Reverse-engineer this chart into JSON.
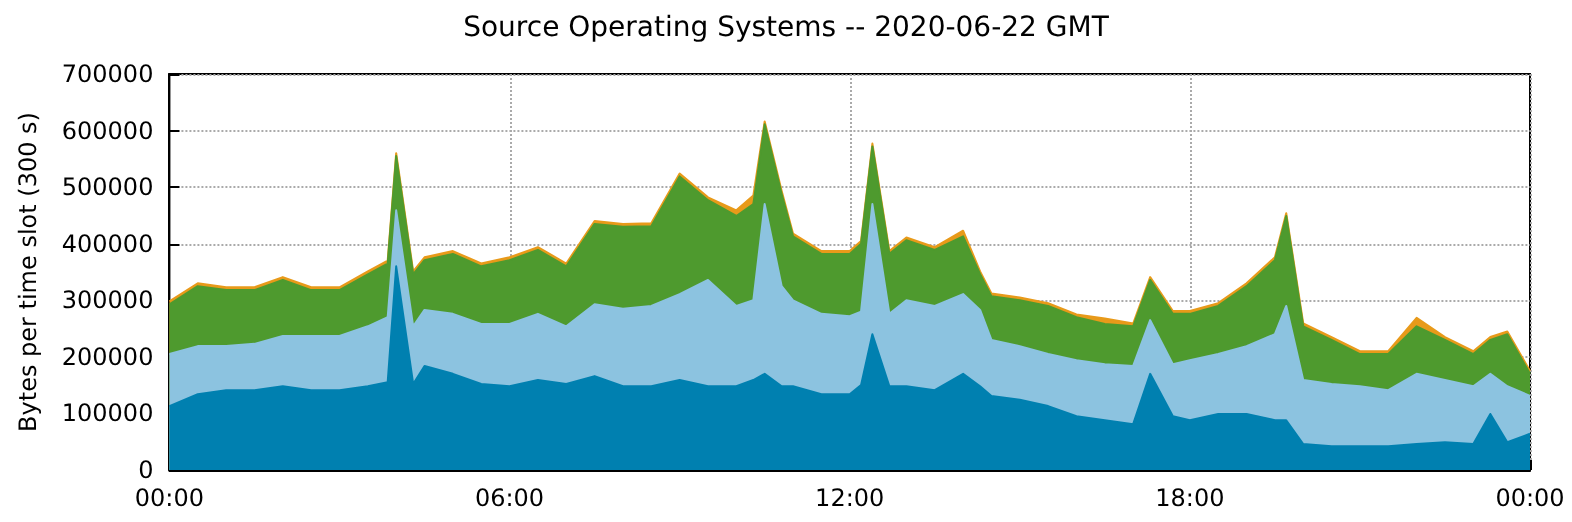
{
  "chart_data": {
    "type": "area",
    "stacked": true,
    "title": "Source Operating Systems -- 2020-06-22 GMT",
    "ylabel": "Bytes per time slot (300 s)",
    "x": [
      0,
      0.5,
      1,
      1.5,
      2,
      2.5,
      3,
      3.5,
      3.85,
      4,
      4.3,
      4.5,
      5,
      5.5,
      6,
      6.5,
      7,
      7.5,
      8,
      8.5,
      9,
      9.5,
      10,
      10.3,
      10.5,
      10.8,
      11,
      11.5,
      12,
      12.2,
      12.4,
      12.7,
      13,
      13.5,
      14,
      14.3,
      14.5,
      15,
      15.5,
      16,
      16.5,
      17,
      17.3,
      17.7,
      18,
      18.5,
      19,
      19.5,
      19.7,
      20,
      20.5,
      21,
      21.5,
      22,
      22.5,
      23,
      23.3,
      23.6,
      24
    ],
    "series": [
      {
        "color": "#0080b0",
        "values": [
          113000,
          134000,
          141000,
          141000,
          148000,
          141000,
          141000,
          148000,
          155000,
          360000,
          152000,
          184000,
          170000,
          152000,
          148000,
          159000,
          152000,
          166000,
          148000,
          148000,
          159000,
          148000,
          148000,
          159000,
          170000,
          148000,
          148000,
          134000,
          134000,
          150000,
          240000,
          148000,
          148000,
          141000,
          170000,
          148000,
          131000,
          124000,
          113000,
          95000,
          88000,
          81000,
          170000,
          95000,
          88000,
          99000,
          99000,
          88000,
          88000,
          46000,
          42000,
          42000,
          42000,
          46000,
          49000,
          46000,
          99000,
          49000,
          64000
        ]
      },
      {
        "color": "#8cc3e0",
        "values": [
          92000,
          85000,
          78000,
          82000,
          89000,
          96000,
          96000,
          106000,
          115000,
          99000,
          102000,
          99000,
          106000,
          106000,
          110000,
          117000,
          102000,
          127000,
          137000,
          142000,
          152000,
          188000,
          142000,
          141000,
          300000,
          177000,
          152000,
          142000,
          138000,
          130000,
          230000,
          128000,
          152000,
          149000,
          141000,
          135000,
          99000,
          95000,
          92000,
          99000,
          99000,
          103000,
          95000,
          92000,
          106000,
          106000,
          120000,
          152000,
          202000,
          113000,
          110000,
          106000,
          99000,
          124000,
          110000,
          102000,
          71000,
          99000,
          67000
        ]
      },
      {
        "color": "#4e9a2e",
        "values": [
          88000,
          106000,
          99000,
          95000,
          99000,
          81000,
          81000,
          92000,
          95000,
          96000,
          92000,
          88000,
          106000,
          102000,
          113000,
          113000,
          106000,
          142000,
          145000,
          141000,
          208000,
          141000,
          159000,
          170000,
          141000,
          163000,
          113000,
          106000,
          110000,
          120000,
          102000,
          106000,
          106000,
          99000,
          102000,
          63000,
          77000,
          81000,
          85000,
          76000,
          71000,
          70000,
          71000,
          89000,
          82000,
          85000,
          106000,
          131000,
          159000,
          95000,
          78000,
          57000,
          64000,
          84000,
          71000,
          57000,
          60000,
          92000,
          39000
        ]
      },
      {
        "color": "#e89a1a",
        "values": [
          5000,
          5000,
          5000,
          5000,
          5000,
          5000,
          5000,
          5000,
          5000,
          5000,
          5000,
          5000,
          5000,
          5000,
          5000,
          5000,
          5000,
          5000,
          5000,
          5000,
          5000,
          5000,
          10000,
          15000,
          5000,
          5000,
          5000,
          5000,
          5000,
          5000,
          5000,
          5000,
          5000,
          5000,
          10000,
          5000,
          5000,
          5000,
          5000,
          5000,
          10000,
          5000,
          5000,
          5000,
          5000,
          5000,
          5000,
          5000,
          5000,
          5000,
          5000,
          5000,
          5000,
          15000,
          5000,
          5000,
          5000,
          5000,
          5000
        ]
      }
    ],
    "xlim": [
      0,
      24
    ],
    "xticks": [
      {
        "value": 0,
        "label": "00:00"
      },
      {
        "value": 6,
        "label": "06:00"
      },
      {
        "value": 12,
        "label": "12:00"
      },
      {
        "value": 18,
        "label": "18:00"
      },
      {
        "value": 24,
        "label": "00:00"
      }
    ],
    "ylim": [
      0,
      700000
    ],
    "yticks": [
      0,
      100000,
      200000,
      300000,
      400000,
      500000,
      600000,
      700000
    ],
    "grid": true,
    "line_style": "solid"
  }
}
